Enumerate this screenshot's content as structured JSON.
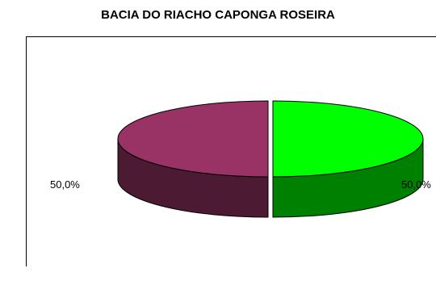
{
  "chart_data": {
    "type": "pie",
    "title": "BACIA DO RIACHO CAPONGA ROSEIRA",
    "categories": [
      "",
      ""
    ],
    "values": [
      50.0,
      50.0
    ],
    "data_labels": [
      "50,0%",
      "50,0%"
    ],
    "colors": {
      "slice_right_top": "#00ff00",
      "slice_right_side": "#008000",
      "slice_left_top": "#993366",
      "slice_left_side": "#4d1a33",
      "outline": "#000000"
    },
    "style": "3d-exploded",
    "legend": "none",
    "grid": false
  }
}
